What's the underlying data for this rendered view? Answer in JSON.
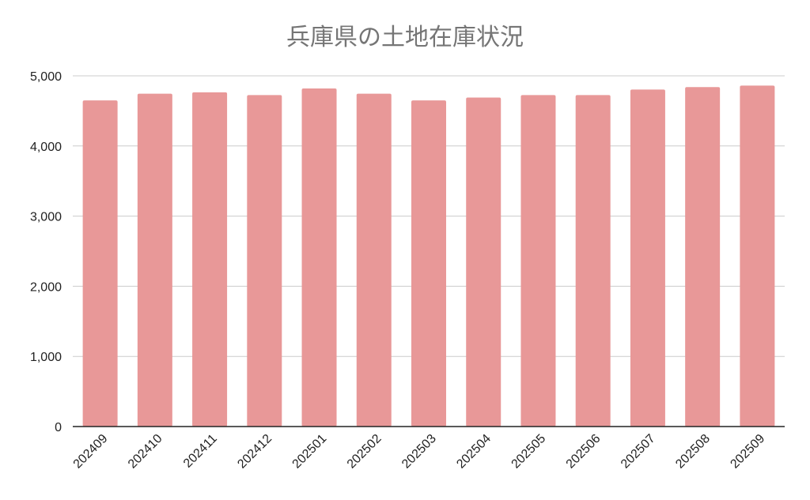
{
  "chart_data": {
    "type": "bar",
    "title": "兵庫県の土地在庫状況",
    "categories": [
      "202409",
      "202410",
      "202411",
      "202412",
      "202501",
      "202502",
      "202503",
      "202504",
      "202505",
      "202506",
      "202507",
      "202508",
      "202509"
    ],
    "series": [
      {
        "values": [
          4650,
          4745,
          4765,
          4725,
          4820,
          4745,
          4650,
          4690,
          4725,
          4725,
          4805,
          4840,
          4860
        ]
      }
    ],
    "ylim": [
      0,
      5000
    ],
    "yticks": [
      0,
      1000,
      2000,
      3000,
      4000,
      5000
    ],
    "ytick_labels": [
      "0",
      "1,000",
      "2,000",
      "3,000",
      "4,000",
      "5,000"
    ],
    "grid": true,
    "bar_color": "#e89898",
    "grid_color": "#cccccc",
    "axis_color": "#222222"
  }
}
